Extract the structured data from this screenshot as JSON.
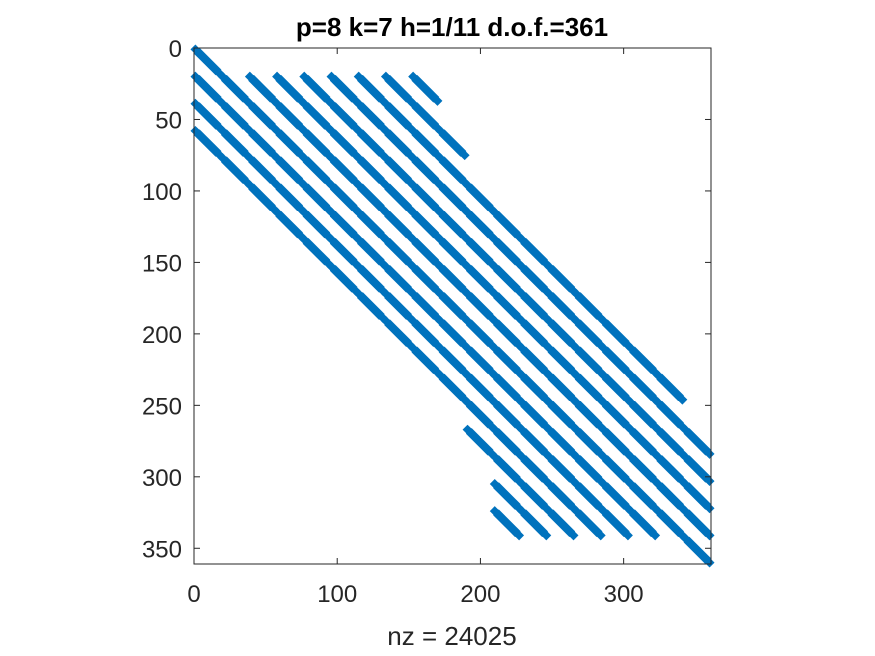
{
  "chart_data": {
    "type": "scatter",
    "subtype": "sparsity-pattern",
    "title": "p=8 k=7 h=1/11 d.o.f.=361",
    "xlabel": "nz = 24025",
    "ylabel": "",
    "matrix_size": 361,
    "nz": 24025,
    "xlim": [
      0,
      361
    ],
    "ylim": [
      0,
      361
    ],
    "y_reversed": true,
    "xticks": [
      0,
      100,
      200,
      300
    ],
    "yticks": [
      0,
      50,
      100,
      150,
      200,
      250,
      300,
      350
    ],
    "grid": false,
    "marker_color": "#0072BD",
    "block_size": 19,
    "block_rows": [
      {
        "row_start": 0,
        "col_blocks": [
          0
        ]
      },
      {
        "row_start": 19,
        "col_blocks": [
          0,
          1,
          2,
          3,
          4,
          5,
          6,
          7,
          8
        ]
      },
      {
        "row_start": 38,
        "col_blocks": [
          0,
          1,
          2,
          3,
          4,
          5,
          6,
          7,
          8
        ]
      },
      {
        "row_start": 57,
        "col_blocks": [
          0,
          1,
          2,
          3,
          4,
          5,
          6,
          7,
          8,
          9
        ]
      },
      {
        "row_start": 76,
        "col_blocks": [
          1,
          2,
          3,
          4,
          5,
          6,
          7,
          8,
          9
        ]
      },
      {
        "row_start": 95,
        "col_blocks": [
          2,
          3,
          4,
          5,
          6,
          7,
          8,
          9,
          10
        ]
      },
      {
        "row_start": 114,
        "col_blocks": [
          3,
          4,
          5,
          6,
          7,
          8,
          9,
          10,
          11
        ]
      },
      {
        "row_start": 133,
        "col_blocks": [
          4,
          5,
          6,
          7,
          8,
          9,
          10,
          11,
          12
        ]
      },
      {
        "row_start": 152,
        "col_blocks": [
          5,
          6,
          7,
          8,
          9,
          10,
          11,
          12,
          13
        ]
      },
      {
        "row_start": 171,
        "col_blocks": [
          6,
          7,
          8,
          9,
          10,
          11,
          12,
          13,
          14
        ]
      },
      {
        "row_start": 190,
        "col_blocks": [
          7,
          8,
          9,
          10,
          11,
          12,
          13,
          14,
          15
        ]
      },
      {
        "row_start": 209,
        "col_blocks": [
          8,
          9,
          10,
          11,
          12,
          13,
          14,
          15,
          16
        ]
      },
      {
        "row_start": 228,
        "col_blocks": [
          9,
          10,
          11,
          12,
          13,
          14,
          15,
          16,
          17
        ]
      },
      {
        "row_start": 247,
        "col_blocks": [
          10,
          11,
          12,
          13,
          14,
          15,
          16,
          17
        ]
      },
      {
        "row_start": 266,
        "col_blocks": [
          10,
          11,
          12,
          13,
          14,
          15,
          16,
          17,
          18
        ]
      },
      {
        "row_start": 285,
        "col_blocks": [
          11,
          12,
          13,
          14,
          15,
          16,
          17,
          18
        ]
      },
      {
        "row_start": 304,
        "col_blocks": [
          11,
          12,
          13,
          14,
          15,
          16,
          17,
          18
        ]
      },
      {
        "row_start": 323,
        "col_blocks": [
          11,
          12,
          13,
          14,
          15,
          16,
          17,
          18
        ]
      },
      {
        "row_start": 342,
        "col_blocks": [
          18
        ]
      }
    ]
  }
}
